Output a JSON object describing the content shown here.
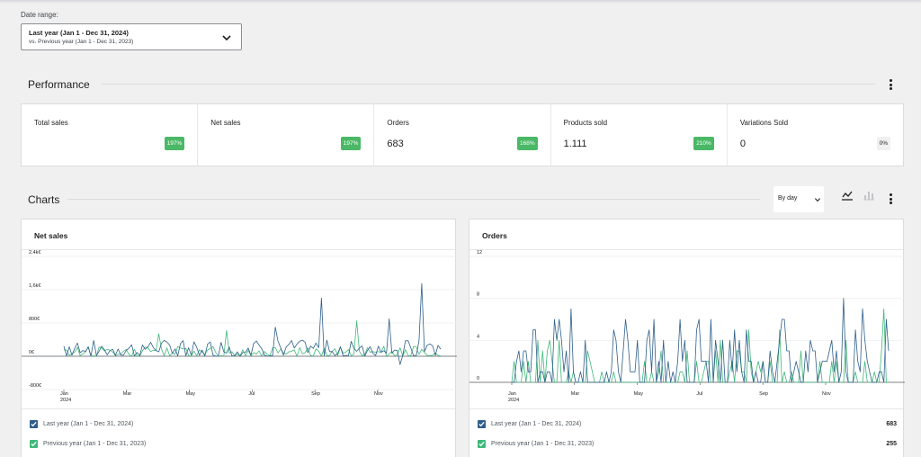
{
  "date_range": {
    "label": "Date range:",
    "primary": "Last year (Jan 1 - Dec 31, 2024)",
    "secondary": "vs. Previous year (Jan 1 - Dec 31, 2023)"
  },
  "performance": {
    "title": "Performance",
    "tiles": [
      {
        "label": "Total sales",
        "value": "",
        "delta": "197%",
        "delta_state": "up"
      },
      {
        "label": "Net sales",
        "value": "",
        "delta": "197%",
        "delta_state": "up"
      },
      {
        "label": "Orders",
        "value": "683",
        "delta": "168%",
        "delta_state": "up"
      },
      {
        "label": "Products sold",
        "value": "1.111",
        "delta": "210%",
        "delta_state": "up"
      },
      {
        "label": "Variations Sold",
        "value": "0",
        "delta": "0%",
        "delta_state": "neutral"
      }
    ]
  },
  "charts_section": {
    "title": "Charts",
    "interval": "By day",
    "chart_type_icons": [
      "line-chart-icon",
      "bar-chart-icon"
    ]
  },
  "colors": {
    "current": "#2e5f8a",
    "previous": "#3fb87a",
    "badge_up": "#4ab866"
  },
  "chart_data": [
    {
      "type": "line",
      "title": "Net sales",
      "x_tick_labels": [
        "Jan\n2024",
        "Mar",
        "May",
        "Jul",
        "Sep",
        "Nov"
      ],
      "y_tick_labels": [
        "2,4k€",
        "1,6k€",
        "800€",
        "0€",
        "-800€"
      ],
      "ylim": [
        -800,
        2400
      ],
      "xlim": [
        "2024-01-01",
        "2024-12-31"
      ],
      "grid": true,
      "series": [
        {
          "name": "Last year (Jan 1 - Dec 31, 2024)",
          "summary": "daily values mostly 0–700€, peaks ~1,4k€ in Sep and ~1,7k€ in late Nov, one dip to ~-200€ in early Nov"
        },
        {
          "name": "Previous year (Jan 1 - Dec 31, 2023)",
          "summary": "daily values mostly 0–500€, peak ~850€ in Oct"
        }
      ],
      "legend": [
        {
          "label": "Last year (Jan 1 - Dec 31, 2024)",
          "count": ""
        },
        {
          "label": "Previous year (Jan 1 - Dec 31, 2023)",
          "count": ""
        }
      ]
    },
    {
      "type": "line",
      "title": "Orders",
      "x_tick_labels": [
        "Jan\n2024",
        "Mar",
        "May",
        "Jul",
        "Sep",
        "Nov"
      ],
      "y_tick_labels": [
        "12",
        "8",
        "4",
        "0"
      ],
      "ylim": [
        0,
        12
      ],
      "xlim": [
        "2024-01-01",
        "2024-12-31"
      ],
      "grid": true,
      "series": [
        {
          "name": "Last year (Jan 1 - Dec 31, 2024)",
          "summary": "daily orders 0–8, typically 1–4"
        },
        {
          "name": "Previous year (Jan 1 - Dec 31, 2023)",
          "summary": "daily orders 0–7, typically 0–2"
        }
      ],
      "legend": [
        {
          "label": "Last year (Jan 1 - Dec 31, 2024)",
          "count": "683"
        },
        {
          "label": "Previous year (Jan 1 - Dec 31, 2023)",
          "count": "255"
        }
      ]
    }
  ]
}
